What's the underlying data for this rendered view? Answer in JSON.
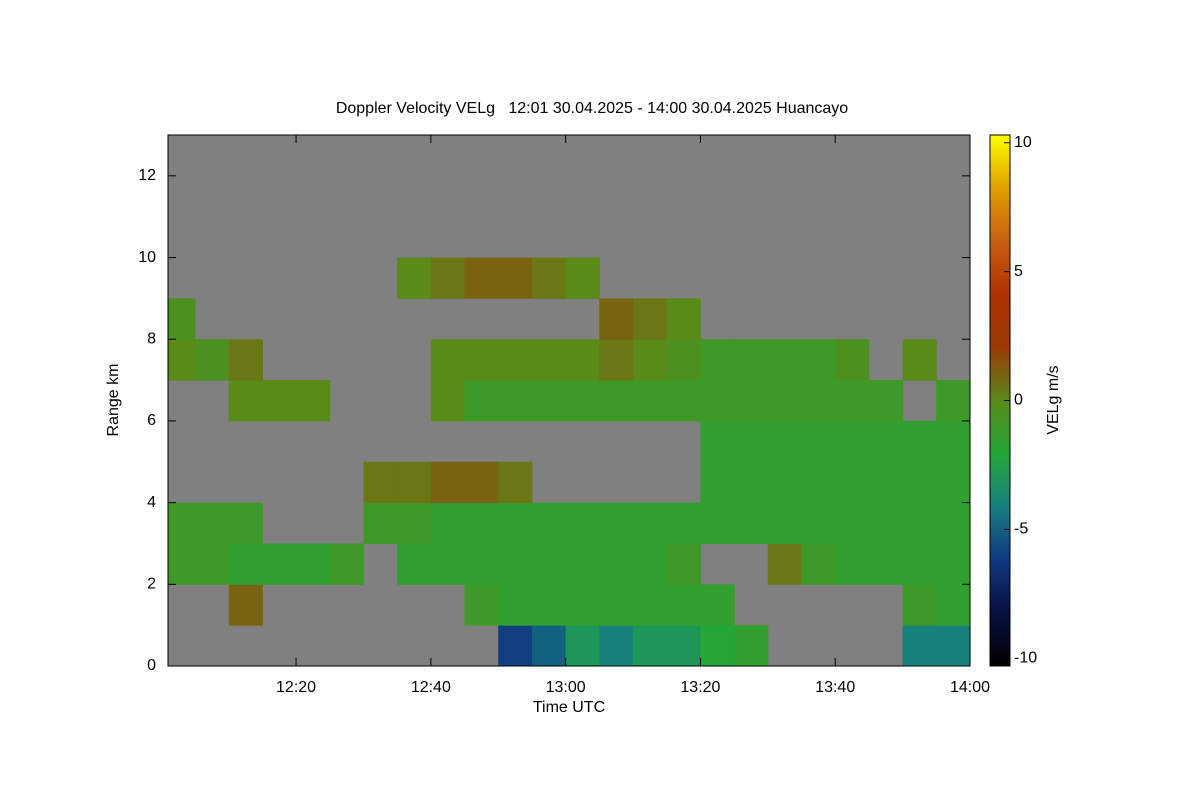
{
  "chart_data": {
    "type": "heatmap",
    "title": "Doppler Velocity VELg   12:01 30.04.2025 - 14:00 30.04.2025 Huancayo",
    "xlabel": "Time UTC",
    "ylabel": "Range km",
    "colorbar_label": "VELg m/s",
    "xlim": [
      721,
      840
    ],
    "xticks": [
      {
        "value": 740,
        "label": "12:20"
      },
      {
        "value": 760,
        "label": "12:40"
      },
      {
        "value": 780,
        "label": "13:00"
      },
      {
        "value": 800,
        "label": "13:20"
      },
      {
        "value": 820,
        "label": "13:40"
      },
      {
        "value": 840,
        "label": "14:00"
      }
    ],
    "ylim": [
      0,
      13
    ],
    "yticks": [
      0,
      2,
      4,
      6,
      8,
      10,
      12
    ],
    "clim": [
      -10.3,
      10.3
    ],
    "cticks": [
      -10,
      -5,
      0,
      5,
      10
    ],
    "colormap": [
      "#000000",
      "#081040",
      "#103880",
      "#168080",
      "#22a838",
      "#5a8a18",
      "#9a3a08",
      "#b03000",
      "#c86010",
      "#e0a000",
      "#ffff00"
    ],
    "nodata_color": "#808080",
    "xbins": [
      720,
      725,
      730,
      735,
      740,
      745,
      750,
      755,
      760,
      765,
      770,
      775,
      780,
      785,
      790,
      795,
      800,
      805,
      810,
      815,
      820,
      825,
      830,
      835,
      840
    ],
    "ybins": [
      0,
      1,
      2,
      3,
      4,
      5,
      6,
      7,
      8,
      9,
      10,
      11,
      12,
      13
    ],
    "z": [
      [
        null,
        null,
        null,
        null,
        null,
        null,
        null,
        null,
        null,
        null,
        -6,
        -5,
        -3,
        -4,
        -3,
        -3,
        -2,
        -1.5,
        null,
        null,
        null,
        null,
        -4,
        -4
      ],
      [
        null,
        null,
        1,
        null,
        null,
        null,
        null,
        null,
        null,
        -1,
        -1.5,
        -1.5,
        -1.5,
        -1.5,
        -1.5,
        -1.5,
        -1.5,
        null,
        null,
        null,
        null,
        null,
        -1,
        -1.5
      ],
      [
        -1,
        -1,
        -1.5,
        -1.5,
        -1.5,
        -1,
        null,
        -1.5,
        -1.5,
        -1.5,
        -1.5,
        -1.5,
        -1.5,
        -1.5,
        -1.5,
        -1,
        null,
        null,
        0.5,
        -1,
        -1.5,
        -1.5,
        -1.5,
        -1.5
      ],
      [
        -1,
        -1,
        -1,
        null,
        null,
        null,
        -1,
        -1,
        -1.5,
        -1.5,
        -1.5,
        -1.5,
        -1.5,
        -1.5,
        -1.5,
        -1.5,
        -1.5,
        -1.5,
        -1.5,
        -1.5,
        -1.5,
        -1.5,
        -1.5,
        -1.5
      ],
      [
        null,
        null,
        null,
        null,
        null,
        null,
        0.5,
        0.5,
        1,
        1,
        0.5,
        null,
        null,
        null,
        null,
        null,
        -1.5,
        -1.5,
        -1.5,
        -1.5,
        -1.5,
        -1.5,
        -1.5,
        -1.5
      ],
      [
        null,
        null,
        null,
        null,
        null,
        null,
        null,
        null,
        null,
        null,
        null,
        null,
        null,
        null,
        null,
        null,
        -1.5,
        -1.5,
        -1.5,
        -1.5,
        -1.5,
        -1.5,
        -1.5,
        -1.5
      ],
      [
        null,
        null,
        0,
        0,
        0,
        null,
        null,
        null,
        0,
        -1,
        -1,
        -1,
        -1,
        -1,
        -1,
        -1,
        -1,
        -1,
        -1,
        -1,
        -1,
        -1,
        null,
        -1
      ],
      [
        0,
        -0.5,
        0.5,
        null,
        null,
        null,
        null,
        null,
        0,
        0,
        0,
        0,
        0,
        0.5,
        0,
        -0.5,
        -1,
        -1,
        -1,
        -1,
        -0.5,
        null,
        0,
        null
      ],
      [
        -0.5,
        null,
        null,
        null,
        null,
        null,
        null,
        null,
        null,
        null,
        null,
        null,
        null,
        1,
        0.5,
        0,
        null,
        null,
        null,
        null,
        null,
        null,
        null,
        null
      ],
      [
        null,
        null,
        null,
        null,
        null,
        null,
        null,
        0,
        0.5,
        1,
        1,
        0.5,
        0,
        null,
        null,
        null,
        null,
        null,
        null,
        null,
        null,
        null,
        null,
        null
      ],
      [
        null,
        null,
        null,
        null,
        null,
        null,
        null,
        null,
        null,
        null,
        null,
        null,
        null,
        null,
        null,
        null,
        null,
        null,
        null,
        null,
        null,
        null,
        null,
        null
      ],
      [
        null,
        null,
        null,
        null,
        null,
        null,
        null,
        null,
        null,
        null,
        null,
        null,
        null,
        null,
        null,
        null,
        null,
        null,
        null,
        null,
        null,
        null,
        null,
        null
      ],
      [
        null,
        null,
        null,
        null,
        null,
        null,
        null,
        null,
        null,
        null,
        null,
        null,
        null,
        null,
        null,
        null,
        null,
        null,
        null,
        null,
        null,
        null,
        null,
        null
      ]
    ]
  }
}
